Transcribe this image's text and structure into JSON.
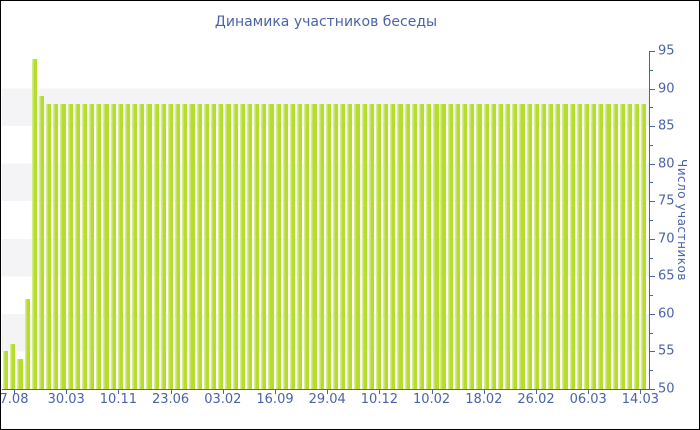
{
  "title": "Динамика участников беседы",
  "colors": {
    "bar": "#b5dd2e",
    "bar_highlight": "#d6ec8a",
    "axis": "#4b63a8",
    "text": "#4b63a8",
    "band": "#f4f4f6",
    "background": "#ffffff",
    "border": "#000000"
  },
  "chart_data": {
    "type": "bar",
    "title": "Динамика участников беседы",
    "xlabel": "",
    "ylabel": "Число участников",
    "ylim": [
      50,
      95
    ],
    "y_axis_side": "right",
    "y_ticks": [
      50,
      55,
      60,
      65,
      70,
      75,
      80,
      85,
      90,
      95
    ],
    "y_minor_ticks": [
      52.5,
      57.5,
      62.5,
      67.5,
      72.5,
      77.5,
      82.5,
      87.5,
      92.5
    ],
    "grid": "alternating horizontal bands of white and light gray, 5 units each",
    "legend_position": "none",
    "x_tick_labels": [
      "7.08",
      "30.03",
      "10.11",
      "23.06",
      "03.02",
      "16.09",
      "29.04",
      "10.12",
      "10.02",
      "18.02",
      "26.02",
      "06.03",
      "14.03"
    ],
    "values": [
      55,
      56,
      54,
      62,
      94,
      89,
      88,
      88,
      88,
      88,
      88,
      88,
      88,
      88,
      88,
      88,
      88,
      88,
      88,
      88,
      88,
      88,
      88,
      88,
      88,
      88,
      88,
      88,
      88,
      88,
      88,
      88,
      88,
      88,
      88,
      88,
      88,
      88,
      88,
      88,
      88,
      88,
      88,
      88,
      88,
      88,
      88,
      88,
      88,
      88,
      88,
      88,
      88,
      88,
      88,
      88,
      88,
      88,
      88,
      88,
      88,
      88,
      88,
      88,
      88,
      88,
      88,
      88,
      88,
      88,
      88,
      88,
      88,
      88,
      88,
      88,
      88,
      88,
      88,
      88,
      88,
      88,
      88,
      88,
      88,
      88,
      88,
      88,
      88,
      88
    ]
  }
}
